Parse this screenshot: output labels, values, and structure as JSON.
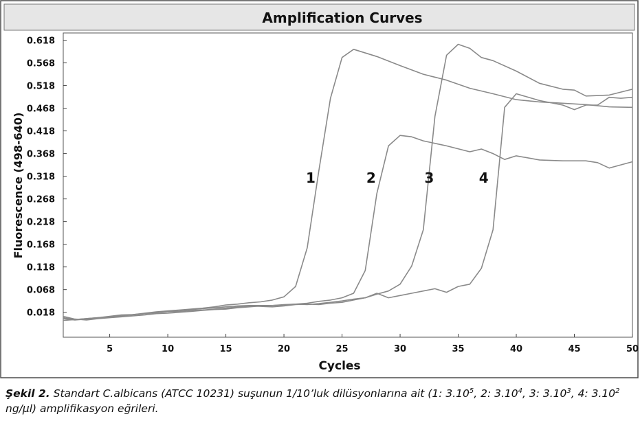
{
  "chart_data": {
    "type": "line",
    "title": "Amplification Curves",
    "xlabel": "Cycles",
    "ylabel": "Fluorescence (498-640)",
    "xlim": [
      1,
      50
    ],
    "ylim": [
      -0.037,
      0.634
    ],
    "xticks": [
      5,
      10,
      15,
      20,
      25,
      30,
      35,
      40,
      45,
      50
    ],
    "yticks": [
      0.018,
      0.068,
      0.118,
      0.168,
      0.218,
      0.268,
      0.318,
      0.368,
      0.418,
      0.468,
      0.518,
      0.568,
      0.618
    ],
    "xtick_labels": [
      "5",
      "10",
      "15",
      "20",
      "25",
      "30",
      "35",
      "40",
      "45",
      "50"
    ],
    "ytick_labels": [
      "0.018",
      "0.068",
      "0.118",
      "0.168",
      "0.218",
      "0.268",
      "0.318",
      "0.368",
      "0.418",
      "0.468",
      "0.518",
      "0.568",
      "0.618"
    ],
    "grid": false,
    "line_color": "#8a8a8a",
    "series": [
      {
        "name": "1",
        "label_at": [
          22.3,
          0.316
        ],
        "x": [
          1,
          2,
          3,
          4,
          5,
          6,
          7,
          8,
          9,
          10,
          11,
          12,
          13,
          14,
          15,
          16,
          17,
          18,
          19,
          20,
          21,
          22,
          23,
          24,
          25,
          26,
          28,
          30,
          32,
          34,
          36,
          38,
          40,
          42,
          44,
          46,
          48,
          50
        ],
        "y": [
          0.006,
          0.002,
          0.004,
          0.006,
          0.009,
          0.012,
          0.013,
          0.016,
          0.019,
          0.021,
          0.023,
          0.025,
          0.027,
          0.03,
          0.034,
          0.036,
          0.039,
          0.041,
          0.045,
          0.052,
          0.075,
          0.16,
          0.33,
          0.49,
          0.58,
          0.598,
          0.582,
          0.562,
          0.543,
          0.53,
          0.512,
          0.5,
          0.487,
          0.482,
          0.479,
          0.476,
          0.471,
          0.47
        ]
      },
      {
        "name": "2",
        "label_at": [
          27.5,
          0.316
        ],
        "x": [
          1,
          2,
          3,
          4,
          5,
          6,
          7,
          8,
          9,
          10,
          11,
          12,
          13,
          14,
          15,
          16,
          17,
          18,
          19,
          20,
          21,
          22,
          23,
          24,
          25,
          26,
          27,
          28,
          29,
          30,
          31,
          32,
          34,
          36,
          37,
          38,
          39,
          40,
          42,
          44,
          46,
          47,
          48,
          50
        ],
        "y": [
          0.0,
          0.002,
          0.004,
          0.006,
          0.008,
          0.01,
          0.013,
          0.015,
          0.017,
          0.02,
          0.022,
          0.024,
          0.026,
          0.028,
          0.03,
          0.032,
          0.033,
          0.033,
          0.033,
          0.034,
          0.036,
          0.038,
          0.042,
          0.045,
          0.05,
          0.06,
          0.11,
          0.28,
          0.385,
          0.408,
          0.405,
          0.396,
          0.385,
          0.372,
          0.378,
          0.368,
          0.355,
          0.363,
          0.354,
          0.352,
          0.352,
          0.348,
          0.336,
          0.35
        ]
      },
      {
        "name": "3",
        "label_at": [
          32.5,
          0.316
        ],
        "x": [
          1,
          2,
          3,
          4,
          5,
          6,
          7,
          8,
          9,
          10,
          11,
          12,
          13,
          14,
          15,
          16,
          17,
          18,
          19,
          20,
          21,
          22,
          23,
          24,
          25,
          26,
          27,
          28,
          29,
          30,
          31,
          32,
          33,
          34,
          35,
          36,
          37,
          38,
          40,
          42,
          44,
          45,
          46,
          48,
          50
        ],
        "y": [
          0.004,
          0.001,
          0.003,
          0.005,
          0.007,
          0.01,
          0.012,
          0.015,
          0.017,
          0.019,
          0.02,
          0.022,
          0.023,
          0.025,
          0.027,
          0.03,
          0.032,
          0.031,
          0.03,
          0.032,
          0.035,
          0.036,
          0.035,
          0.038,
          0.04,
          0.045,
          0.05,
          0.058,
          0.065,
          0.08,
          0.12,
          0.2,
          0.45,
          0.585,
          0.609,
          0.6,
          0.58,
          0.573,
          0.55,
          0.523,
          0.51,
          0.508,
          0.495,
          0.497,
          0.51
        ]
      },
      {
        "name": "4",
        "label_at": [
          37.2,
          0.316
        ],
        "x": [
          1,
          2,
          3,
          4,
          5,
          6,
          7,
          8,
          9,
          10,
          11,
          12,
          13,
          14,
          15,
          16,
          17,
          18,
          19,
          20,
          21,
          22,
          23,
          24,
          25,
          26,
          27,
          28,
          29,
          30,
          31,
          32,
          33,
          34,
          35,
          36,
          37,
          38,
          39,
          40,
          42,
          44,
          45,
          46,
          47,
          48,
          49,
          50
        ],
        "y": [
          0.009,
          0.003,
          0.001,
          0.004,
          0.006,
          0.008,
          0.01,
          0.012,
          0.015,
          0.016,
          0.018,
          0.02,
          0.022,
          0.024,
          0.025,
          0.028,
          0.03,
          0.032,
          0.033,
          0.035,
          0.036,
          0.035,
          0.037,
          0.04,
          0.043,
          0.047,
          0.05,
          0.06,
          0.05,
          0.055,
          0.06,
          0.065,
          0.07,
          0.062,
          0.075,
          0.08,
          0.115,
          0.2,
          0.47,
          0.5,
          0.485,
          0.475,
          0.465,
          0.475,
          0.475,
          0.492,
          0.49,
          0.492
        ]
      }
    ]
  },
  "caption": {
    "label": "Şekil 2.",
    "text_a": " Standart C.albicans (ATCC 10231) suşunun 1/10’luk dilüsyonlarına ait (1: 3.10",
    "sup1": "5",
    "text_b": ", 2: 3.10",
    "sup2": "4",
    "text_c": ", 3: 3.10",
    "sup3": "3",
    "text_d": ", 4: 3.10",
    "sup4": "2",
    "text_e": " ng/μl) amplifikasyon eğrileri."
  }
}
